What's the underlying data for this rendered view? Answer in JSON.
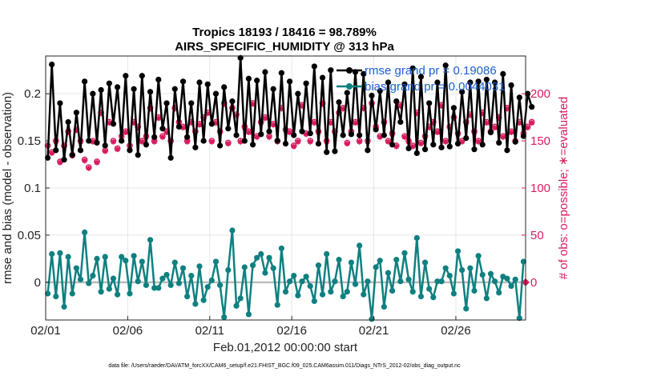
{
  "chart_data": {
    "type": "line",
    "title": "Tropics 18193 / 18416 = 98.789%",
    "subtitle": "AIRS_SPECIFIC_HUMIDITY @ 313 hPa",
    "xlabel": "Feb.01,2012 00:00:00 start",
    "ylabel": "rmse and bias (model - observation)",
    "ylabel_right": "# of obs: o=possible; ∗=evaluated",
    "footnote": "data file: /Users/raeder/DAI/ATM_forcXX/CAM6_setup/f.e21.FHIST_BGC.f09_025.CAM6assim.011/Diags_NTrS_2012-02/obs_diag_output.nc",
    "x_tick_labels": [
      "02/01",
      "02/06",
      "02/11",
      "02/16",
      "02/21",
      "02/26"
    ],
    "x_tick_days": [
      0,
      5,
      10,
      15,
      20,
      25
    ],
    "xlim": [
      0,
      29.25
    ],
    "y_tick_labels": [
      "0",
      "0.05",
      "0.1",
      "0.15",
      "0.2"
    ],
    "y_ticks": [
      0,
      0.05,
      0.1,
      0.15,
      0.2
    ],
    "ylim": [
      -0.04,
      0.24
    ],
    "y2_tick_labels": [
      "0",
      "50",
      "100",
      "150",
      "200"
    ],
    "y2_ticks": [
      0,
      50,
      100,
      150,
      200
    ],
    "y2lim": [
      -40,
      240
    ],
    "legend": [
      "rmse grand pr = 0.19086",
      "bias grand pr = 0.0044031"
    ],
    "legend_position": "top-right",
    "colors": {
      "rmse": "#000000",
      "bias": "#0f8080",
      "obs": "#d81b60",
      "zero_line": "#bbbbbb",
      "legend_text": "#1a5fd0",
      "title": "#000000"
    },
    "series": [
      {
        "name": "rmse",
        "x_step_days": 0.25,
        "values": [
          0.132,
          0.231,
          0.14,
          0.19,
          0.13,
          0.17,
          0.135,
          0.18,
          0.14,
          0.213,
          0.15,
          0.2,
          0.148,
          0.204,
          0.145,
          0.211,
          0.168,
          0.207,
          0.15,
          0.219,
          0.14,
          0.205,
          0.135,
          0.219,
          0.146,
          0.202,
          0.154,
          0.215,
          0.163,
          0.19,
          0.132,
          0.205,
          0.165,
          0.213,
          0.154,
          0.19,
          0.143,
          0.212,
          0.15,
          0.21,
          0.168,
          0.2,
          0.145,
          0.207,
          0.163,
          0.192,
          0.156,
          0.238,
          0.15,
          0.216,
          0.146,
          0.214,
          0.157,
          0.223,
          0.16,
          0.205,
          0.15,
          0.222,
          0.147,
          0.213,
          0.156,
          0.2,
          0.16,
          0.211,
          0.158,
          0.229,
          0.147,
          0.217,
          0.138,
          0.225,
          0.139,
          0.191,
          0.156,
          0.201,
          0.157,
          0.223,
          0.156,
          0.221,
          0.14,
          0.198,
          0.162,
          0.203,
          0.156,
          0.212,
          0.146,
          0.192,
          0.17,
          0.21,
          0.142,
          0.227,
          0.137,
          0.218,
          0.141,
          0.19,
          0.146,
          0.212,
          0.143,
          0.23,
          0.144,
          0.185,
          0.147,
          0.202,
          0.153,
          0.212,
          0.141,
          0.213,
          0.146,
          0.215,
          0.159,
          0.212,
          0.148,
          0.221,
          0.14,
          0.209,
          0.149,
          0.196,
          0.155,
          0.2,
          0.186
        ]
      },
      {
        "name": "bias",
        "x_step_days": 0.25,
        "values": [
          -0.012,
          0.03,
          -0.015,
          0.031,
          -0.026,
          0.027,
          -0.012,
          0.015,
          0.003,
          0.053,
          -0.001,
          0.007,
          0.025,
          -0.01,
          0.027,
          -0.007,
          0.004,
          -0.013,
          0.027,
          0.023,
          -0.012,
          0.028,
          0.001,
          0.022,
          -0.003,
          0.045,
          -0.006,
          -0.006,
          0.004,
          0.008,
          -0.003,
          0.021,
          -0.001,
          0.015,
          -0.015,
          0.007,
          -0.023,
          0.017,
          -0.019,
          -0.005,
          0.002,
          0.022,
          -0.003,
          -0.037,
          0.013,
          0.055,
          -0.025,
          -0.017,
          0.016,
          -0.034,
          0.018,
          0.026,
          0.03,
          0.01,
          0.026,
          0.015,
          -0.024,
          0.036,
          -0.01,
          0.001,
          0.007,
          -0.014,
          0.001,
          0.006,
          -0.004,
          -0.02,
          0.018,
          -0.013,
          0.03,
          -0.01,
          0.001,
          0.024,
          -0.015,
          -0.01,
          0.021,
          -0.002,
          0.039,
          -0.013,
          0.001,
          -0.039,
          0.016,
          0.023,
          -0.026,
          0.01,
          -0.009,
          0.024,
          0.001,
          0.031,
          0.003,
          -0.01,
          0.047,
          -0.015,
          0.021,
          -0.007,
          -0.016,
          0.001,
          0.001,
          0.015,
          0.007,
          -0.012,
          0.033,
          0.013,
          -0.028,
          0.015,
          -0.009,
          0.028,
          0.008,
          -0.017,
          0.009,
          0.001,
          -0.011,
          0.006,
          0.004,
          -0.004,
          0.003,
          -0.038,
          0.022
        ]
      },
      {
        "name": "obs_possible",
        "x_step_days": 0.25,
        "values": [
          145,
          138,
          150,
          128,
          145,
          160,
          135,
          162,
          150,
          130,
          122,
          150,
          128,
          180,
          140,
          170,
          150,
          142,
          155,
          160,
          145,
          170,
          165,
          150,
          155,
          185,
          150,
          175,
          155,
          160,
          150,
          185,
          170,
          165,
          150,
          170,
          160,
          168,
          175,
          180,
          150,
          170,
          160,
          190,
          148,
          185,
          178,
          150,
          165,
          160,
          190,
          155,
          170,
          175,
          155,
          168,
          150,
          185,
          162,
          160,
          145,
          150,
          188,
          158,
          150,
          170,
          160,
          190,
          150,
          170,
          160,
          180,
          185,
          148,
          160,
          170,
          150,
          185,
          150,
          190,
          165,
          155,
          170,
          150,
          158,
          145,
          188,
          155,
          150,
          145,
          180,
          148,
          155,
          165,
          170,
          160,
          188,
          150,
          165,
          175,
          158,
          150,
          170,
          178,
          160,
          150,
          180,
          170,
          160,
          165,
          175,
          155,
          185,
          160,
          150,
          170,
          158,
          165,
          170
        ]
      },
      {
        "name": "obs_evaluated",
        "x_step_days": 0.25,
        "values": [
          145,
          137,
          149,
          127,
          144,
          159,
          134,
          161,
          149,
          129,
          121,
          149,
          127,
          179,
          139,
          169,
          149,
          141,
          154,
          159,
          144,
          169,
          164,
          149,
          154,
          184,
          149,
          174,
          154,
          159,
          149,
          184,
          169,
          164,
          149,
          169,
          159,
          167,
          174,
          179,
          149,
          169,
          159,
          189,
          147,
          184,
          177,
          149,
          164,
          159,
          189,
          154,
          169,
          174,
          154,
          167,
          149,
          184,
          161,
          159,
          144,
          149,
          187,
          157,
          149,
          169,
          159,
          189,
          149,
          169,
          159,
          179,
          184,
          147,
          159,
          169,
          149,
          184,
          149,
          189,
          164,
          154,
          169,
          149,
          157,
          144,
          187,
          154,
          149,
          144,
          179,
          147,
          154,
          164,
          169,
          159,
          187,
          149,
          164,
          174,
          157,
          149,
          169,
          177,
          159,
          149,
          179,
          169,
          159,
          164,
          174,
          154,
          184,
          159,
          149,
          169,
          157,
          164,
          169
        ]
      }
    ]
  }
}
